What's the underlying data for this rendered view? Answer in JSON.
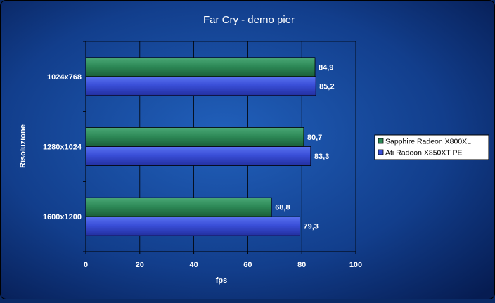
{
  "chart_data": {
    "type": "bar",
    "orientation": "horizontal",
    "title": "Far Cry - demo pier",
    "xlabel": "fps",
    "ylabel": "Risoluzione",
    "categories": [
      "1024x768",
      "1280x1024",
      "1600x1200"
    ],
    "series": [
      {
        "name": "Sapphire Radeon X800XL",
        "values": [
          84.9,
          80.7,
          68.8
        ],
        "labels": [
          "84,9",
          "80,7",
          "68,8"
        ],
        "color": "#2e8a58"
      },
      {
        "name": "Ati Radeon X850XT PE",
        "values": [
          85.2,
          83.3,
          79.3
        ],
        "labels": [
          "85,2",
          "83,3",
          "79,3"
        ],
        "color": "#3a4fd8"
      }
    ],
    "xlim": [
      0,
      100
    ],
    "xticks": [
      0,
      20,
      40,
      60,
      80,
      100
    ],
    "grid": true,
    "legend": "right",
    "colors": {
      "background_center": "#1e5ab4",
      "background_edge": "#072058",
      "text": "#ffffff",
      "grid": "#000000"
    }
  }
}
